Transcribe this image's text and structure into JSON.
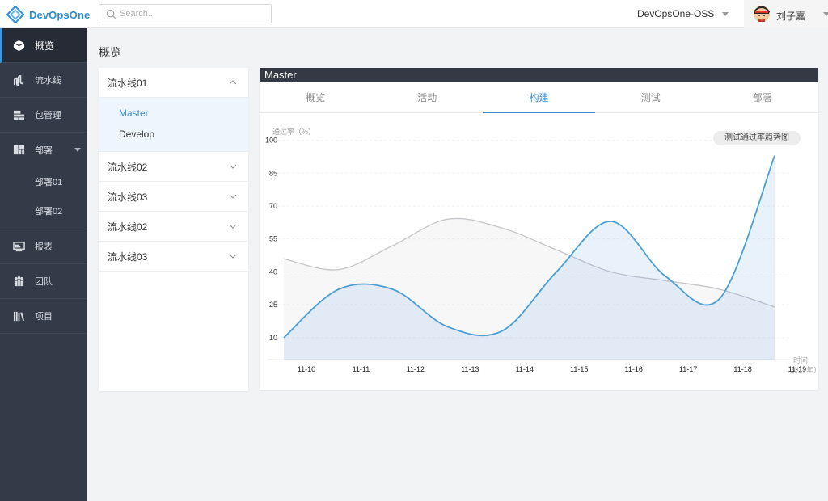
{
  "app": {
    "name": "DevOpsOne",
    "search_placeholder": "Search...",
    "project": "DevOpsOne-OSS",
    "user": "刘子嘉"
  },
  "sidebar": {
    "items": [
      {
        "label": "概览",
        "icon": "cube-icon"
      },
      {
        "label": "流水线",
        "icon": "pipeline-icon"
      },
      {
        "label": "包管理",
        "icon": "package-icon"
      },
      {
        "label": "部署",
        "icon": "deploy-icon"
      },
      {
        "label": "报表",
        "icon": "report-icon"
      },
      {
        "label": "团队",
        "icon": "team-icon"
      },
      {
        "label": "项目",
        "icon": "project-icon"
      }
    ],
    "deploy_sub": [
      "部署01",
      "部署02"
    ]
  },
  "page": {
    "title": "概览"
  },
  "pipelines": {
    "expanded": {
      "name": "流水线01",
      "branches": [
        "Master",
        "Develop"
      ]
    },
    "others": [
      "流水线02",
      "流水线03",
      "流水线02",
      "流水线03"
    ]
  },
  "card": {
    "header": "Master",
    "tabs": [
      "概览",
      "活动",
      "构建",
      "测试",
      "部署"
    ],
    "active_tab": 2
  },
  "chart_data": {
    "type": "line",
    "ylabel": "通过率（%）",
    "xlabel": "时间",
    "xlabel_sub": "（2017年）",
    "legend": "测试通过率趋势图",
    "categories": [
      "11-10",
      "11-11",
      "11-12",
      "11-13",
      "11-14",
      "11-15",
      "11-16",
      "11-17",
      "11-18",
      "11-19"
    ],
    "yticks": [
      10,
      25,
      40,
      55,
      70,
      85,
      100
    ],
    "ylim": [
      0,
      105
    ],
    "series": [
      {
        "color": "#4a9fd4",
        "fill": true,
        "values": [
          10,
          32,
          32,
          15,
          13,
          40,
          63,
          38,
          28,
          93
        ]
      },
      {
        "color": "#c8c8cc",
        "fill": true,
        "values": [
          46,
          41,
          52,
          64,
          60,
          50,
          40,
          36,
          32,
          24
        ]
      }
    ],
    "grid": true
  }
}
